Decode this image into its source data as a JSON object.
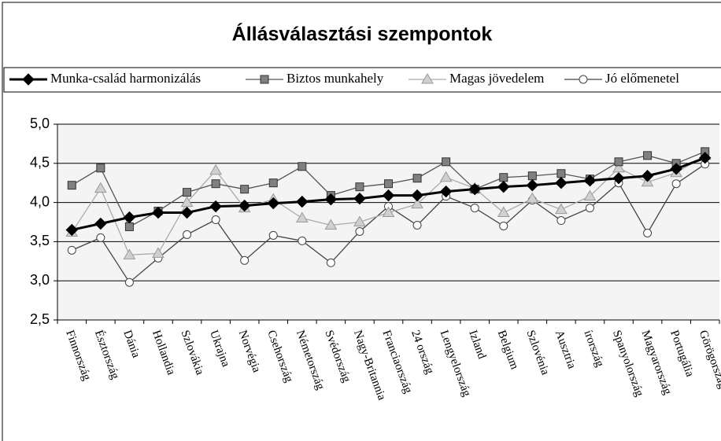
{
  "chart_data": {
    "type": "line",
    "title": "Állásválasztási szempontok",
    "categories": [
      "Finnország",
      "Észtország",
      "Dánia",
      "Hollandia",
      "Szlovákia",
      "Ukrajna",
      "Norvégia",
      "Csehország",
      "Németország",
      "Svédország",
      "Nagy-Britannia",
      "Franciaország",
      "24 ország",
      "Lengyelország",
      "Izland",
      "Belgium",
      "Szlovénia",
      "Ausztria",
      "írország",
      "Spanyolország",
      "Magyarország",
      "Portugália",
      "Görögország"
    ],
    "series": [
      {
        "name": "Munka-család harmonizálás",
        "color": "#000000",
        "marker": "diamond",
        "values": [
          3.65,
          3.73,
          3.81,
          3.87,
          3.87,
          3.95,
          3.96,
          3.99,
          4.01,
          4.04,
          4.05,
          4.09,
          4.09,
          4.14,
          4.17,
          4.2,
          4.22,
          4.25,
          4.28,
          4.31,
          4.34,
          4.43,
          4.57
        ]
      },
      {
        "name": "Biztos munkahely",
        "color": "#555555",
        "marker": "square",
        "values": [
          4.22,
          4.44,
          3.69,
          3.89,
          4.13,
          4.24,
          4.17,
          4.25,
          4.46,
          4.09,
          4.2,
          4.24,
          4.31,
          4.52,
          4.17,
          4.32,
          4.34,
          4.37,
          4.3,
          4.52,
          4.6,
          4.5,
          4.65
        ]
      },
      {
        "name": "Magas jövedelem",
        "color": "#aaaaaa",
        "marker": "triangle",
        "values": [
          3.62,
          4.18,
          3.33,
          3.35,
          4.0,
          4.41,
          3.93,
          4.04,
          3.8,
          3.71,
          3.75,
          3.87,
          3.98,
          4.32,
          4.18,
          3.87,
          4.05,
          3.91,
          4.08,
          4.44,
          4.26,
          4.38,
          4.6
        ]
      },
      {
        "name": "Jó előmenetel",
        "color": "#444444",
        "marker": "circle",
        "values": [
          3.39,
          3.55,
          2.98,
          3.29,
          3.59,
          3.78,
          3.26,
          3.58,
          3.51,
          3.23,
          3.63,
          3.95,
          3.71,
          4.08,
          3.93,
          3.7,
          4.03,
          3.77,
          3.93,
          4.25,
          3.61,
          4.24,
          4.49
        ]
      }
    ],
    "ylim": [
      2.5,
      5.0
    ],
    "yticks": [
      {
        "value": 2.5,
        "label": "2,5"
      },
      {
        "value": 3.0,
        "label": "3,0"
      },
      {
        "value": 3.5,
        "label": "3,5"
      },
      {
        "value": 4.0,
        "label": "4,0"
      },
      {
        "value": 4.5,
        "label": "4,5"
      },
      {
        "value": 5.0,
        "label": "5,0"
      }
    ],
    "grid": true,
    "legend": "top"
  }
}
